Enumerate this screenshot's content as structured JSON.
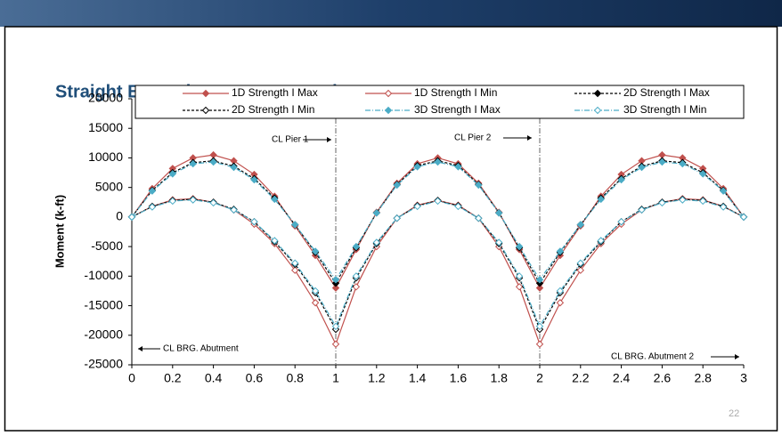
{
  "page_number": "22",
  "chart_data": {
    "type": "line",
    "title": "Straight Example – Moment Interior Beam",
    "y_label": "Moment (k-ft)",
    "x": [
      0,
      0.1,
      0.2,
      0.3,
      0.4,
      0.5,
      0.6,
      0.7,
      0.8,
      0.9,
      1,
      1.1,
      1.2,
      1.3,
      1.4,
      1.5,
      1.6,
      1.7,
      1.8,
      1.9,
      2,
      2.1,
      2.2,
      2.3,
      2.4,
      2.5,
      2.6,
      2.7,
      2.8,
      2.9,
      3
    ],
    "xlim": [
      0,
      3
    ],
    "xticks": [
      0,
      0.2,
      0.4,
      0.6,
      0.8,
      1,
      1.2,
      1.4,
      1.6,
      1.8,
      2,
      2.2,
      2.4,
      2.6,
      2.8,
      3
    ],
    "ylim": [
      -25000,
      20000
    ],
    "yticks": [
      20000,
      15000,
      10000,
      5000,
      0,
      -5000,
      -10000,
      -15000,
      -20000,
      -25000
    ],
    "grid": false,
    "reference_lines": [
      1,
      2
    ],
    "annotations": [
      "CL Pier 1",
      "CL Pier 2",
      "CL BRG. Abutment",
      "CL BRG. Abutment 2"
    ],
    "series": [
      {
        "name": "1D Strength I Max",
        "color": "#c0504d",
        "dash": "solid",
        "marker": "filled",
        "values": [
          0,
          4800,
          8200,
          10000,
          10500,
          9500,
          7200,
          3500,
          -1500,
          -6500,
          -12000,
          -5500,
          800,
          5700,
          9000,
          10000,
          9000,
          5700,
          800,
          -5500,
          -12000,
          -6500,
          -1500,
          3500,
          7200,
          9500,
          10500,
          10000,
          8200,
          4800,
          0
        ]
      },
      {
        "name": "1D Strength I Min",
        "color": "#c0504d",
        "dash": "solid",
        "marker": "open",
        "values": [
          0,
          1800,
          2900,
          3100,
          2500,
          1200,
          -1200,
          -4500,
          -9000,
          -14500,
          -21500,
          -11800,
          -5000,
          -200,
          2000,
          2800,
          2000,
          -200,
          -5000,
          -11800,
          -21500,
          -14500,
          -9000,
          -4500,
          -1200,
          1200,
          2500,
          3100,
          2900,
          1800,
          0
        ]
      },
      {
        "name": "2D Strength I Max",
        "color": "#000000",
        "dash": "dashed",
        "marker": "filled",
        "values": [
          0,
          4500,
          7500,
          9200,
          9500,
          8600,
          6500,
          3200,
          -1300,
          -6000,
          -11200,
          -5200,
          700,
          5500,
          8700,
          9500,
          8700,
          5500,
          700,
          -5200,
          -11200,
          -6000,
          -1300,
          3200,
          6500,
          8600,
          9500,
          9200,
          7500,
          4500,
          0
        ]
      },
      {
        "name": "2D Strength I Min",
        "color": "#000000",
        "dash": "dashed",
        "marker": "open",
        "values": [
          0,
          1800,
          2800,
          3000,
          2500,
          1300,
          -800,
          -4200,
          -8000,
          -12800,
          -19000,
          -10300,
          -4500,
          -200,
          1900,
          2800,
          1900,
          -200,
          -4500,
          -10300,
          -19000,
          -12800,
          -8000,
          -4200,
          -800,
          1300,
          2500,
          3000,
          2800,
          1800,
          0
        ]
      },
      {
        "name": "3D Strength I Max",
        "color": "#4bacc6",
        "dash": "dashdot",
        "marker": "filled",
        "values": [
          0,
          4400,
          7300,
          9000,
          9300,
          8400,
          6300,
          3000,
          -1300,
          -5800,
          -10600,
          -5000,
          700,
          5400,
          8500,
          9300,
          8500,
          5400,
          700,
          -5000,
          -10600,
          -5800,
          -1300,
          3000,
          6300,
          8400,
          9300,
          9000,
          7300,
          4400,
          0
        ]
      },
      {
        "name": "3D Strength I Min",
        "color": "#4bacc6",
        "dash": "dashdot",
        "marker": "open",
        "values": [
          0,
          1700,
          2700,
          2900,
          2400,
          1200,
          -800,
          -4000,
          -7800,
          -12500,
          -18500,
          -10000,
          -4300,
          -200,
          1800,
          2700,
          1800,
          -200,
          -4300,
          -10000,
          -18500,
          -12500,
          -7800,
          -4000,
          -800,
          1200,
          2400,
          2900,
          2700,
          1700,
          0
        ]
      }
    ]
  }
}
